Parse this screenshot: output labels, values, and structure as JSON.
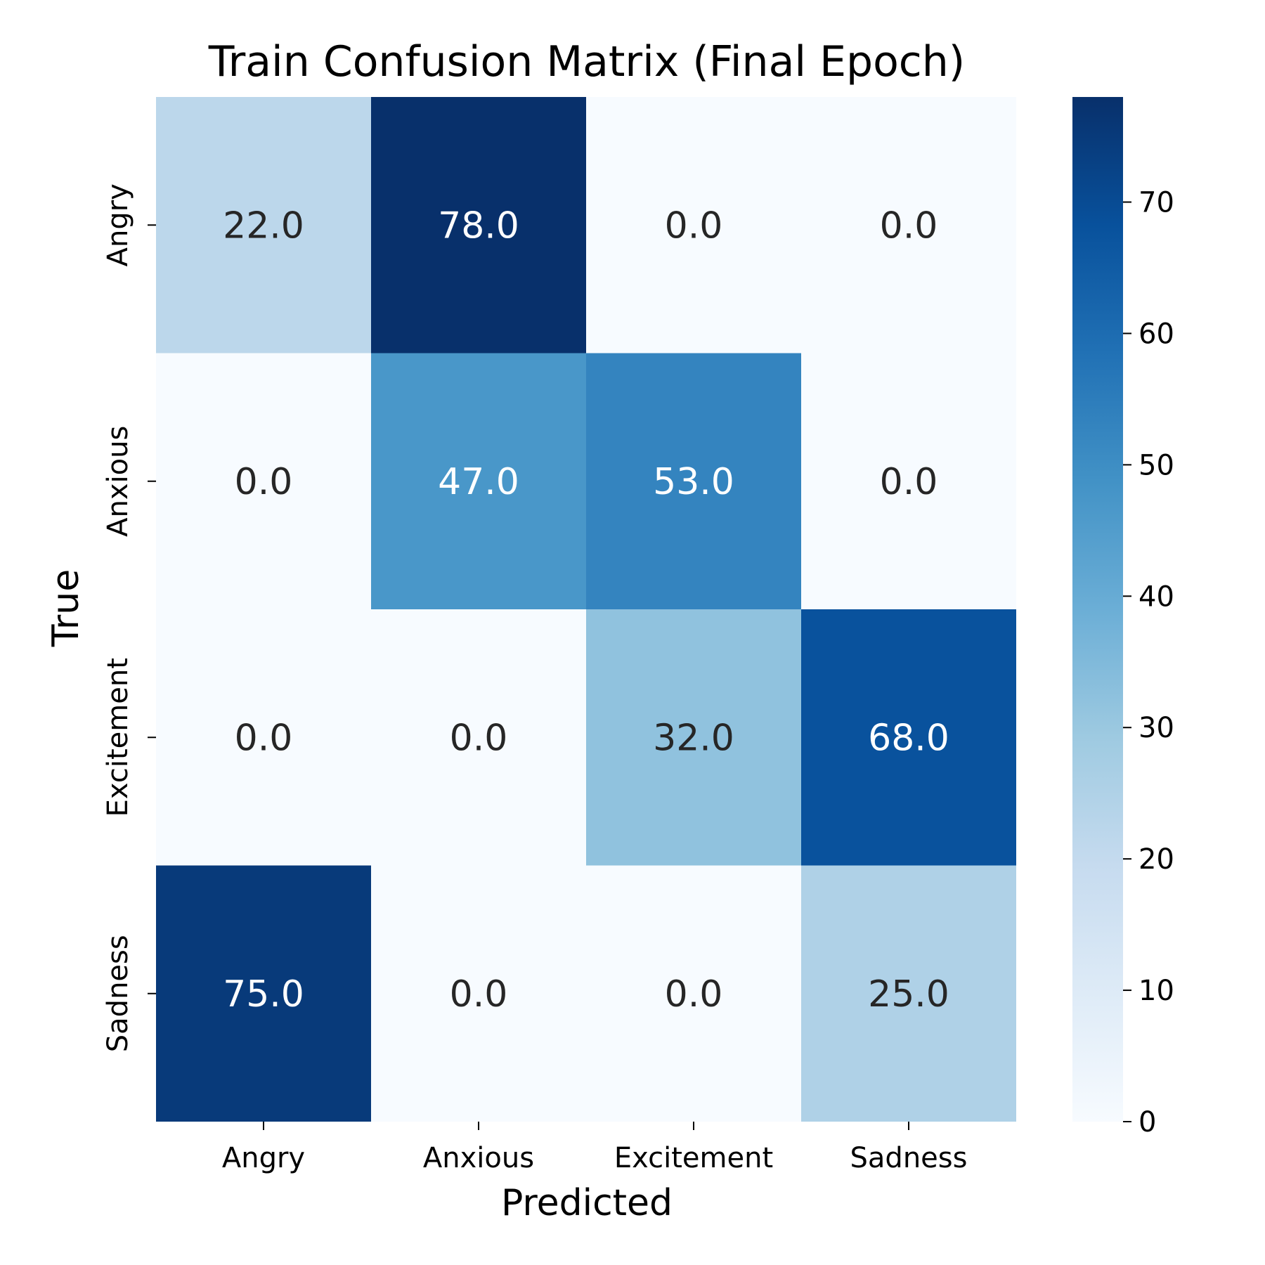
{
  "chart_data": {
    "type": "heatmap",
    "title": "Train Confusion Matrix (Final Epoch)",
    "xlabel": "Predicted",
    "ylabel": "True",
    "x_categories": [
      "Angry",
      "Anxious",
      "Excitement",
      "Sadness"
    ],
    "y_categories": [
      "Angry",
      "Anxious",
      "Excitement",
      "Sadness"
    ],
    "values": [
      [
        22.0,
        78.0,
        0.0,
        0.0
      ],
      [
        0.0,
        47.0,
        53.0,
        0.0
      ],
      [
        0.0,
        0.0,
        32.0,
        68.0
      ],
      [
        75.0,
        0.0,
        0.0,
        25.0
      ]
    ],
    "value_labels": [
      [
        "22.0",
        "78.0",
        "0.0",
        "0.0"
      ],
      [
        "0.0",
        "47.0",
        "53.0",
        "0.0"
      ],
      [
        "0.0",
        "0.0",
        "32.0",
        "68.0"
      ],
      [
        "75.0",
        "0.0",
        "0.0",
        "25.0"
      ]
    ],
    "colormap": "Blues",
    "colorbar": {
      "range": [
        0,
        78
      ],
      "ticks": [
        0,
        10,
        20,
        30,
        40,
        50,
        60,
        70
      ],
      "tick_labels": [
        "0",
        "10",
        "20",
        "30",
        "40",
        "50",
        "60",
        "70"
      ]
    },
    "colors": {
      "low": "#f7fbff",
      "high": "#08306b",
      "text_dark": "#262626",
      "text_light": "#ffffff"
    },
    "grid": false,
    "legend": "colorbar-right"
  }
}
